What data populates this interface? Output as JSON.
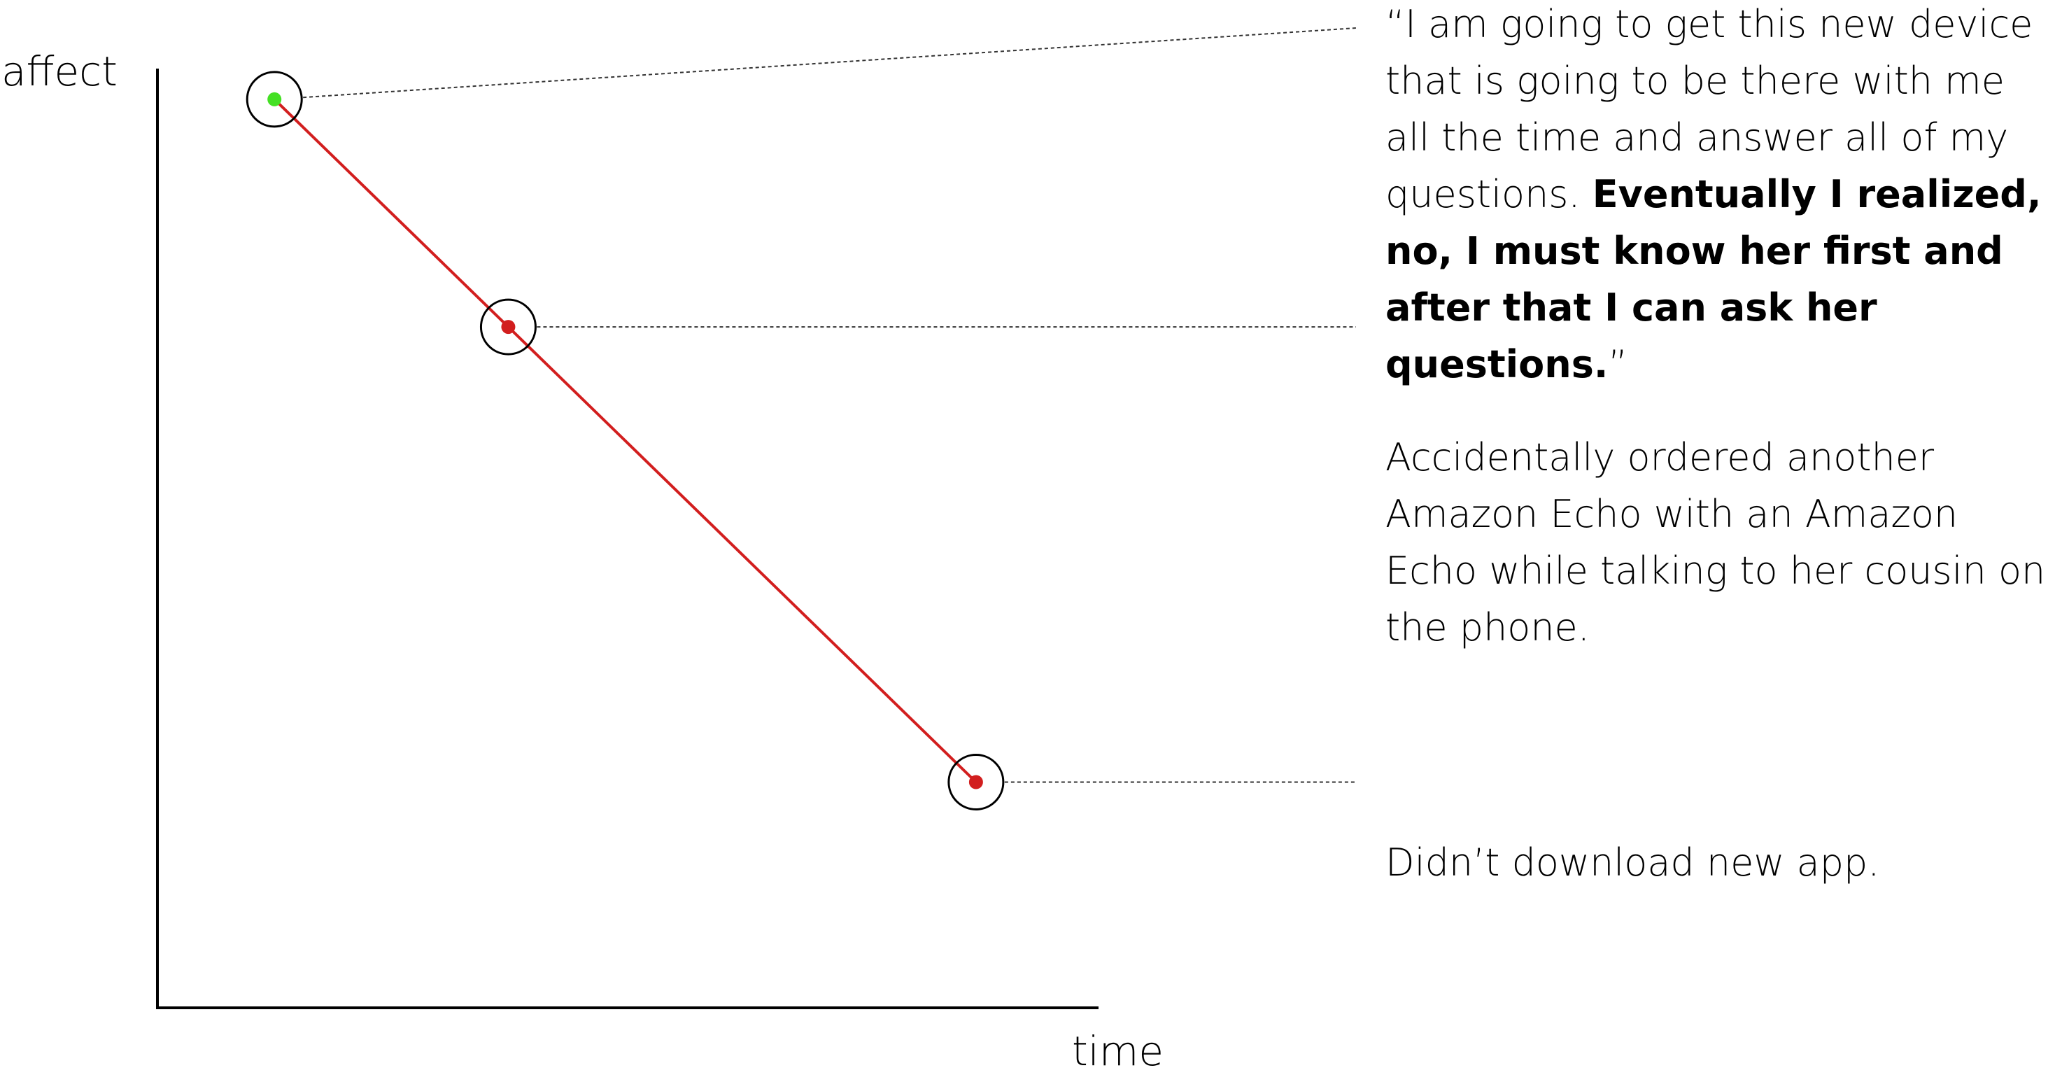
{
  "chart_data": {
    "type": "line",
    "xlabel": "time",
    "ylabel": "affect",
    "points": [
      {
        "x": 1,
        "y": 8.5,
        "color": "#44e024"
      },
      {
        "x": 2,
        "y": 6.5,
        "color": "#d21e1e"
      },
      {
        "x": 4,
        "y": 2.5,
        "color": "#d21e1e"
      }
    ],
    "line_color": "#d21e1e",
    "xlim": [
      0,
      4.5
    ],
    "ylim": [
      0,
      10
    ],
    "grid": false,
    "annotations": [
      {
        "point": 0,
        "text_pre": "“I am going to get this new device that is going to be there with me all the time and answer all of my questions. ",
        "text_bold": "Eventually I realized, no, I must know her first and after that I can ask her questions.",
        "text_post": "”"
      },
      {
        "point": 1,
        "text": "Accidentally ordered another Amazon Echo with an Amazon Echo while talking to her cousin on the phone."
      },
      {
        "point": 2,
        "text": "Didn’t download new app."
      }
    ]
  }
}
